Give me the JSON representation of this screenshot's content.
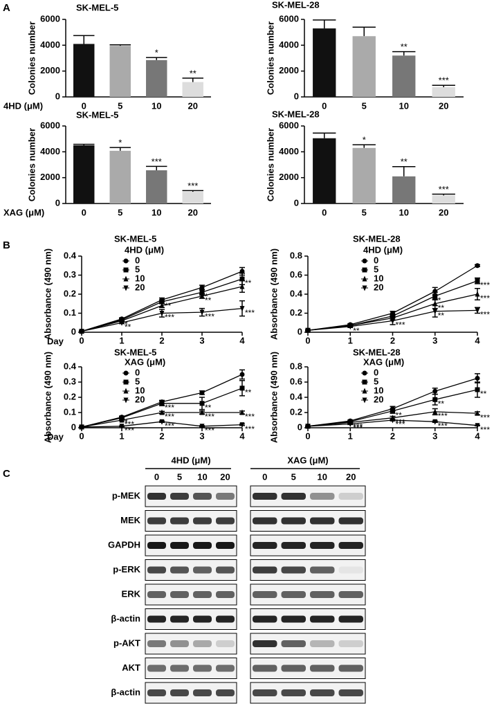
{
  "panel_labels": [
    "A",
    "B",
    "C"
  ],
  "chart_data": [
    {
      "type": "bar",
      "title": "SK-MEL-5",
      "ylabel": "Colonies number",
      "xlabel": "4HD (μM)",
      "categories": [
        0,
        5,
        10,
        20
      ],
      "values": [
        4100,
        3950,
        2850,
        1150
      ],
      "errors": [
        650,
        80,
        200,
        300
      ],
      "annotations": [
        null,
        null,
        "*",
        "**"
      ],
      "colors": [
        "#111111",
        "#aaaaaa",
        "#777777",
        "#dddddd"
      ],
      "ylim": [
        0,
        6000
      ],
      "yticks": [
        0,
        2000,
        4000,
        6000
      ]
    },
    {
      "type": "bar",
      "title": "SK-MEL-28",
      "ylabel": "Colonies number",
      "categories": [
        0,
        5,
        10,
        20
      ],
      "values": [
        5300,
        4700,
        3200,
        750
      ],
      "errors": [
        650,
        700,
        300,
        150
      ],
      "annotations": [
        null,
        null,
        "**",
        "***"
      ],
      "colors": [
        "#111111",
        "#aaaaaa",
        "#777777",
        "#dddddd"
      ],
      "ylim": [
        0,
        6000
      ],
      "yticks": [
        0,
        2000,
        4000,
        6000
      ]
    },
    {
      "type": "bar",
      "title": "SK-MEL-5",
      "ylabel": "Colonies number",
      "xlabel": "XAG (μM)",
      "categories": [
        0,
        5,
        10,
        20
      ],
      "values": [
        4500,
        4080,
        2570,
        900
      ],
      "errors": [
        80,
        250,
        300,
        100
      ],
      "annotations": [
        null,
        "*",
        "***",
        "***"
      ],
      "colors": [
        "#111111",
        "#aaaaaa",
        "#777777",
        "#dddddd"
      ],
      "ylim": [
        0,
        6000
      ],
      "yticks": [
        0,
        2000,
        4000,
        6000
      ]
    },
    {
      "type": "bar",
      "title": "SK-MEL-28",
      "ylabel": "Colonies number",
      "categories": [
        0,
        5,
        10,
        20
      ],
      "values": [
        5050,
        4300,
        2100,
        620
      ],
      "errors": [
        400,
        250,
        750,
        100
      ],
      "annotations": [
        null,
        "*",
        "**",
        "***"
      ],
      "colors": [
        "#111111",
        "#aaaaaa",
        "#777777",
        "#dddddd"
      ],
      "ylim": [
        0,
        6000
      ],
      "yticks": [
        0,
        2000,
        4000,
        6000
      ]
    },
    {
      "type": "line",
      "title": "SK-MEL-5",
      "legend_title": "4HD (μM)",
      "ylabel": "Absorbance (490 nm)",
      "xlabel": "Day",
      "x": [
        0,
        1,
        2,
        3,
        4
      ],
      "xlim": [
        0,
        4
      ],
      "xticks": [
        0,
        1,
        2,
        3,
        4
      ],
      "ylim": [
        0,
        0.4
      ],
      "yticks": [
        0,
        0.1,
        0.2,
        0.3,
        0.4
      ],
      "series": [
        {
          "name": "0",
          "marker": "circle",
          "color": "#000000",
          "values": [
            0.005,
            0.07,
            0.17,
            0.235,
            0.32
          ],
          "errors": [
            0.003,
            0.006,
            0.01,
            0.012,
            0.02
          ],
          "point_labels": [
            null,
            null,
            null,
            null,
            null
          ]
        },
        {
          "name": "5",
          "marker": "square",
          "color": "#000000",
          "values": [
            0.005,
            0.065,
            0.16,
            0.21,
            0.28
          ],
          "errors": [
            0.003,
            0.005,
            0.01,
            0.015,
            0.03
          ],
          "point_labels": [
            null,
            "*",
            "**",
            "*",
            "**"
          ]
        },
        {
          "name": "10",
          "marker": "triangle-up",
          "color": "#000000",
          "values": [
            0.005,
            0.06,
            0.14,
            0.19,
            0.24
          ],
          "errors": [
            0.003,
            0.005,
            0.01,
            0.012,
            0.03
          ],
          "point_labels": [
            null,
            null,
            null,
            "**",
            null
          ]
        },
        {
          "name": "20",
          "marker": "triangle-down",
          "color": "#000000",
          "values": [
            0.005,
            0.05,
            0.1,
            0.105,
            0.125
          ],
          "errors": [
            0.003,
            0.005,
            0.02,
            0.02,
            0.04
          ],
          "point_labels": [
            null,
            "**",
            "***",
            "***",
            "***"
          ]
        }
      ]
    },
    {
      "type": "line",
      "title": "SK-MEL-28",
      "legend_title": "4HD (μM)",
      "ylabel": "Absorbance (490 nm)",
      "x": [
        0,
        1,
        2,
        3,
        4
      ],
      "xlim": [
        0,
        4
      ],
      "xticks": [
        0,
        1,
        2,
        3,
        4
      ],
      "ylim": [
        0,
        0.8
      ],
      "yticks": [
        0,
        0.2,
        0.4,
        0.6,
        0.8
      ],
      "series": [
        {
          "name": "0",
          "marker": "circle",
          "color": "#000000",
          "values": [
            0.02,
            0.08,
            0.2,
            0.43,
            0.7
          ],
          "errors": [
            0.005,
            0.01,
            0.02,
            0.04,
            0.01
          ],
          "point_labels": [
            null,
            null,
            null,
            null,
            null
          ]
        },
        {
          "name": "5",
          "marker": "square",
          "color": "#000000",
          "values": [
            0.02,
            0.07,
            0.17,
            0.38,
            0.54
          ],
          "errors": [
            0.005,
            0.01,
            0.02,
            0.04,
            0.03
          ],
          "point_labels": [
            null,
            null,
            null,
            "*",
            "***"
          ]
        },
        {
          "name": "10",
          "marker": "triangle-up",
          "color": "#000000",
          "values": [
            0.02,
            0.07,
            0.15,
            0.3,
            0.4
          ],
          "errors": [
            0.005,
            0.01,
            0.02,
            0.05,
            0.06
          ],
          "point_labels": [
            null,
            null,
            null,
            "**",
            "***"
          ]
        },
        {
          "name": "20",
          "marker": "triangle-down",
          "color": "#000000",
          "values": [
            0.02,
            0.06,
            0.12,
            0.22,
            0.23
          ],
          "errors": [
            0.005,
            0.01,
            0.04,
            0.06,
            0.03
          ],
          "point_labels": [
            null,
            "**",
            "***",
            "**",
            "***"
          ]
        }
      ]
    },
    {
      "type": "line",
      "title": "SK-MEL-5",
      "legend_title": "XAG (μM)",
      "ylabel": "Absorbance (490 nm)",
      "xlabel": "Day",
      "x": [
        0,
        1,
        2,
        3,
        4
      ],
      "xlim": [
        0,
        4
      ],
      "xticks": [
        0,
        1,
        2,
        3,
        4
      ],
      "ylim": [
        0,
        0.4
      ],
      "yticks": [
        0,
        0.1,
        0.2,
        0.3,
        0.4
      ],
      "series": [
        {
          "name": "0",
          "marker": "circle",
          "color": "#000000",
          "values": [
            0.005,
            0.07,
            0.17,
            0.23,
            0.35
          ],
          "errors": [
            0.003,
            0.006,
            0.01,
            0.012,
            0.03
          ],
          "point_labels": [
            null,
            null,
            null,
            null,
            null
          ]
        },
        {
          "name": "5",
          "marker": "square",
          "color": "#000000",
          "values": [
            0.005,
            0.065,
            0.16,
            0.16,
            0.26
          ],
          "errors": [
            0.003,
            0.006,
            0.015,
            0.04,
            0.05
          ],
          "point_labels": [
            null,
            "*",
            "***",
            "**",
            "**"
          ]
        },
        {
          "name": "10",
          "marker": "triangle-up",
          "color": "#000000",
          "values": [
            0.005,
            0.05,
            0.1,
            0.1,
            0.1
          ],
          "errors": [
            0.003,
            0.005,
            0.008,
            0.01,
            0.01
          ],
          "point_labels": [
            null,
            "***",
            "***",
            "***",
            "***"
          ]
        },
        {
          "name": "20",
          "marker": "triangle-down",
          "color": "#000000",
          "values": [
            0.005,
            0.01,
            0.04,
            0.01,
            0.02
          ],
          "errors": [
            0.003,
            0.003,
            0.005,
            0.004,
            0.005
          ],
          "point_labels": [
            null,
            "***",
            "***",
            "***",
            "***"
          ]
        }
      ]
    },
    {
      "type": "line",
      "title": "SK-MEL-28",
      "legend_title": "XAG (μM)",
      "ylabel": "Absorbance (490 nm)",
      "x": [
        0,
        1,
        2,
        3,
        4
      ],
      "xlim": [
        0,
        4
      ],
      "xticks": [
        0,
        1,
        2,
        3,
        4
      ],
      "ylim": [
        0,
        0.8
      ],
      "yticks": [
        0,
        0.2,
        0.4,
        0.6,
        0.8
      ],
      "series": [
        {
          "name": "0",
          "marker": "circle",
          "color": "#000000",
          "values": [
            0.02,
            0.09,
            0.25,
            0.48,
            0.65
          ],
          "errors": [
            0.005,
            0.01,
            0.03,
            0.04,
            0.06
          ],
          "point_labels": [
            null,
            null,
            null,
            null,
            null
          ]
        },
        {
          "name": "5",
          "marker": "square",
          "color": "#000000",
          "values": [
            0.02,
            0.08,
            0.22,
            0.37,
            0.5
          ],
          "errors": [
            0.005,
            0.01,
            0.03,
            0.07,
            0.1
          ],
          "point_labels": [
            null,
            null,
            "**",
            "**",
            "**"
          ]
        },
        {
          "name": "10",
          "marker": "triangle-up",
          "color": "#000000",
          "values": [
            0.02,
            0.07,
            0.13,
            0.21,
            0.19
          ],
          "errors": [
            0.005,
            0.01,
            0.02,
            0.04,
            0.02
          ],
          "point_labels": [
            null,
            "***",
            "***",
            "***",
            "***"
          ]
        },
        {
          "name": "20",
          "marker": "triangle-down",
          "color": "#000000",
          "values": [
            0.02,
            0.05,
            0.1,
            0.08,
            0.03
          ],
          "errors": [
            0.005,
            0.008,
            0.01,
            0.01,
            0.005
          ],
          "point_labels": [
            null,
            "***",
            "***",
            "***",
            "***"
          ]
        }
      ]
    }
  ],
  "blot": {
    "rows": [
      "p-MEK",
      "MEK",
      "GAPDH",
      "p-ERK",
      "ERK",
      "β-actin",
      "p-AKT",
      "AKT",
      "β-actin"
    ],
    "groups": [
      {
        "label": "4HD (μM)",
        "lanes": [
          0,
          5,
          10,
          20
        ],
        "intensity": [
          [
            0.8,
            0.75,
            0.65,
            0.5
          ],
          [
            0.75,
            0.75,
            0.75,
            0.75
          ],
          [
            0.9,
            0.9,
            0.9,
            0.9
          ],
          [
            0.7,
            0.65,
            0.6,
            0.65
          ],
          [
            0.6,
            0.6,
            0.6,
            0.6
          ],
          [
            0.85,
            0.85,
            0.85,
            0.85
          ],
          [
            0.5,
            0.4,
            0.3,
            0.15
          ],
          [
            0.55,
            0.55,
            0.55,
            0.55
          ],
          [
            0.7,
            0.7,
            0.7,
            0.7
          ]
        ]
      },
      {
        "label": "XAG (μM)",
        "lanes": [
          0,
          5,
          10,
          20
        ],
        "intensity": [
          [
            0.8,
            0.8,
            0.4,
            0.15
          ],
          [
            0.8,
            0.8,
            0.8,
            0.8
          ],
          [
            0.85,
            0.85,
            0.85,
            0.85
          ],
          [
            0.75,
            0.7,
            0.6,
            0.05
          ],
          [
            0.6,
            0.6,
            0.6,
            0.6
          ],
          [
            0.85,
            0.85,
            0.85,
            0.85
          ],
          [
            0.8,
            0.6,
            0.25,
            0.15
          ],
          [
            0.6,
            0.6,
            0.6,
            0.6
          ],
          [
            0.7,
            0.7,
            0.7,
            0.7
          ]
        ]
      }
    ]
  }
}
